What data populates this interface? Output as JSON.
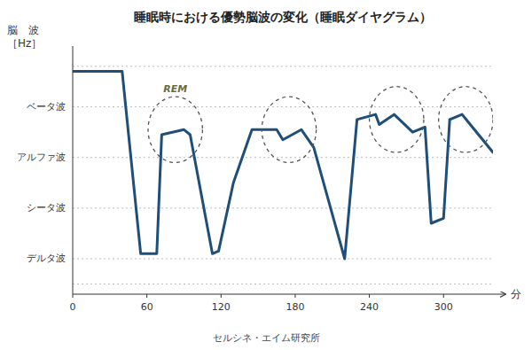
{
  "chart_data": {
    "type": "line",
    "title": "睡眠時における優勢脳波の変化（睡眠ダイヤグラム）",
    "y_label": [
      "脳　波",
      "［Hz］"
    ],
    "x_label": "分",
    "footer": "セルシネ・エイム研究所",
    "x": [
      0,
      40,
      55,
      68,
      72,
      90,
      95,
      113,
      118,
      130,
      145,
      165,
      170,
      185,
      195,
      220,
      230,
      245,
      248,
      260,
      275,
      285,
      290,
      300,
      305,
      315,
      320,
      340
    ],
    "values": [
      4.7,
      4.7,
      1.1,
      1.1,
      3.45,
      3.55,
      3.45,
      1.1,
      1.15,
      2.5,
      3.55,
      3.55,
      3.35,
      3.55,
      3.2,
      1.0,
      3.75,
      3.85,
      3.65,
      3.85,
      3.5,
      3.6,
      1.7,
      1.8,
      3.75,
      3.85,
      3.7,
      3.1
    ],
    "xlim": [
      0,
      340
    ],
    "ylim": [
      0.3,
      5.2
    ],
    "xticks": [
      0,
      60,
      120,
      180,
      240,
      300
    ],
    "yticks": [
      {
        "value": 4,
        "label": "ベータ波"
      },
      {
        "value": 3,
        "label": "アルファ波"
      },
      {
        "value": 2,
        "label": "シータ波"
      },
      {
        "value": 1,
        "label": "デルタ波"
      }
    ],
    "hlines": [
      4.8,
      0.5
    ],
    "grid": true,
    "ellipses": [
      {
        "cx": 83,
        "cy": 3.55,
        "rx": 22,
        "ry": 0.65
      },
      {
        "cx": 175,
        "cy": 3.55,
        "rx": 22,
        "ry": 0.65
      },
      {
        "cx": 262,
        "cy": 3.75,
        "rx": 22,
        "ry": 0.65
      },
      {
        "cx": 318,
        "cy": 3.75,
        "rx": 22,
        "ry": 0.65
      }
    ],
    "annotations": [
      {
        "text": "REM"
      }
    ]
  }
}
